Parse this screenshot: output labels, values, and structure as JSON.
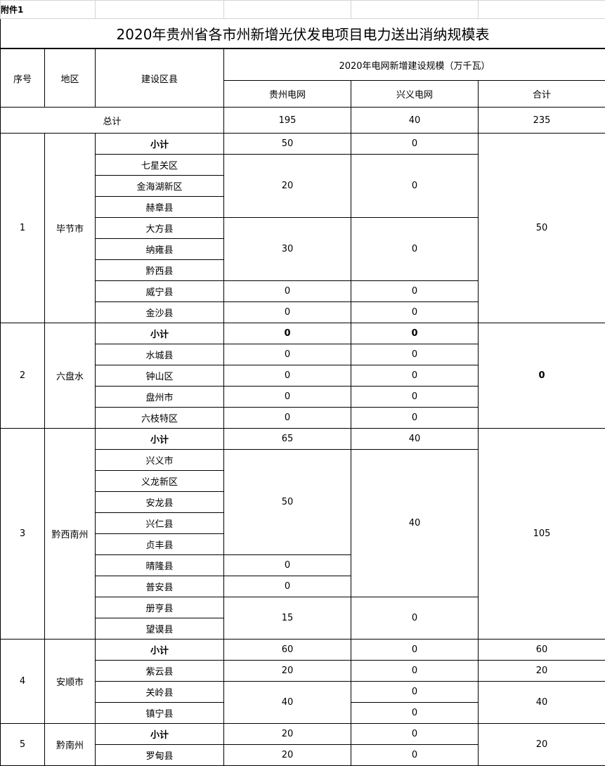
{
  "attachment": "附件1",
  "title": "2020年贵州省各市州新增光伏发电项目电力送出消纳规模表",
  "headers": {
    "no": "序号",
    "region": "地区",
    "county": "建设区县",
    "scale": "2020年电网新增建设规模（万千瓦）",
    "gz": "贵州电网",
    "xy": "兴义电网",
    "total": "合计"
  },
  "grand_total": {
    "label": "总计",
    "gz": "195",
    "xy": "40",
    "total": "235"
  },
  "regions": [
    {
      "no": "1",
      "name": "毕节市",
      "rows": [
        {
          "county": "小计",
          "gz": "50",
          "xy": "0",
          "total": "50"
        },
        {
          "county": "七星关区",
          "gz": "20",
          "xy": "0"
        },
        {
          "county": "金海湖新区"
        },
        {
          "county": "赫章县"
        },
        {
          "county": "大方县",
          "gz": "30",
          "xy": "0"
        },
        {
          "county": "纳雍县"
        },
        {
          "county": "黔西县"
        },
        {
          "county": "威宁县",
          "gz": "0",
          "xy": "0"
        },
        {
          "county": "金沙县",
          "gz": "0",
          "xy": "0"
        }
      ]
    },
    {
      "no": "2",
      "name": "六盘水",
      "rows": [
        {
          "county": "小计",
          "gz": "0",
          "xy": "0",
          "total": "0"
        },
        {
          "county": "水城县",
          "gz": "0",
          "xy": "0"
        },
        {
          "county": "钟山区",
          "gz": "0",
          "xy": "0"
        },
        {
          "county": "盘州市",
          "gz": "0",
          "xy": "0"
        },
        {
          "county": "六枝特区",
          "gz": "0",
          "xy": "0"
        }
      ]
    },
    {
      "no": "3",
      "name": "黔西南州",
      "rows": [
        {
          "county": "小计",
          "gz": "65",
          "xy": "40",
          "total": "105"
        },
        {
          "county": "兴义市",
          "gz": "50",
          "xy": "40"
        },
        {
          "county": "义龙新区"
        },
        {
          "county": "安龙县"
        },
        {
          "county": "兴仁县"
        },
        {
          "county": "贞丰县"
        },
        {
          "county": "晴隆县",
          "gz": "0"
        },
        {
          "county": "普安县",
          "gz": "0"
        },
        {
          "county": "册亨县",
          "gz": "15",
          "xy": "0"
        },
        {
          "county": "望谟县"
        }
      ]
    },
    {
      "no": "4",
      "name": "安顺市",
      "rows": [
        {
          "county": "小计",
          "gz": "60",
          "xy": "0",
          "total": "60"
        },
        {
          "county": "紫云县",
          "gz": "20",
          "xy": "0",
          "total": "20"
        },
        {
          "county": "关岭县",
          "gz": "40",
          "xy": "0",
          "total": "40"
        },
        {
          "county": "镇宁县",
          "xy": "0"
        }
      ]
    },
    {
      "no": "5",
      "name": "黔南州",
      "rows": [
        {
          "county": "小计",
          "gz": "20",
          "xy": "0",
          "total": "20"
        },
        {
          "county": "罗甸县",
          "gz": "20",
          "xy": "0"
        }
      ]
    }
  ]
}
